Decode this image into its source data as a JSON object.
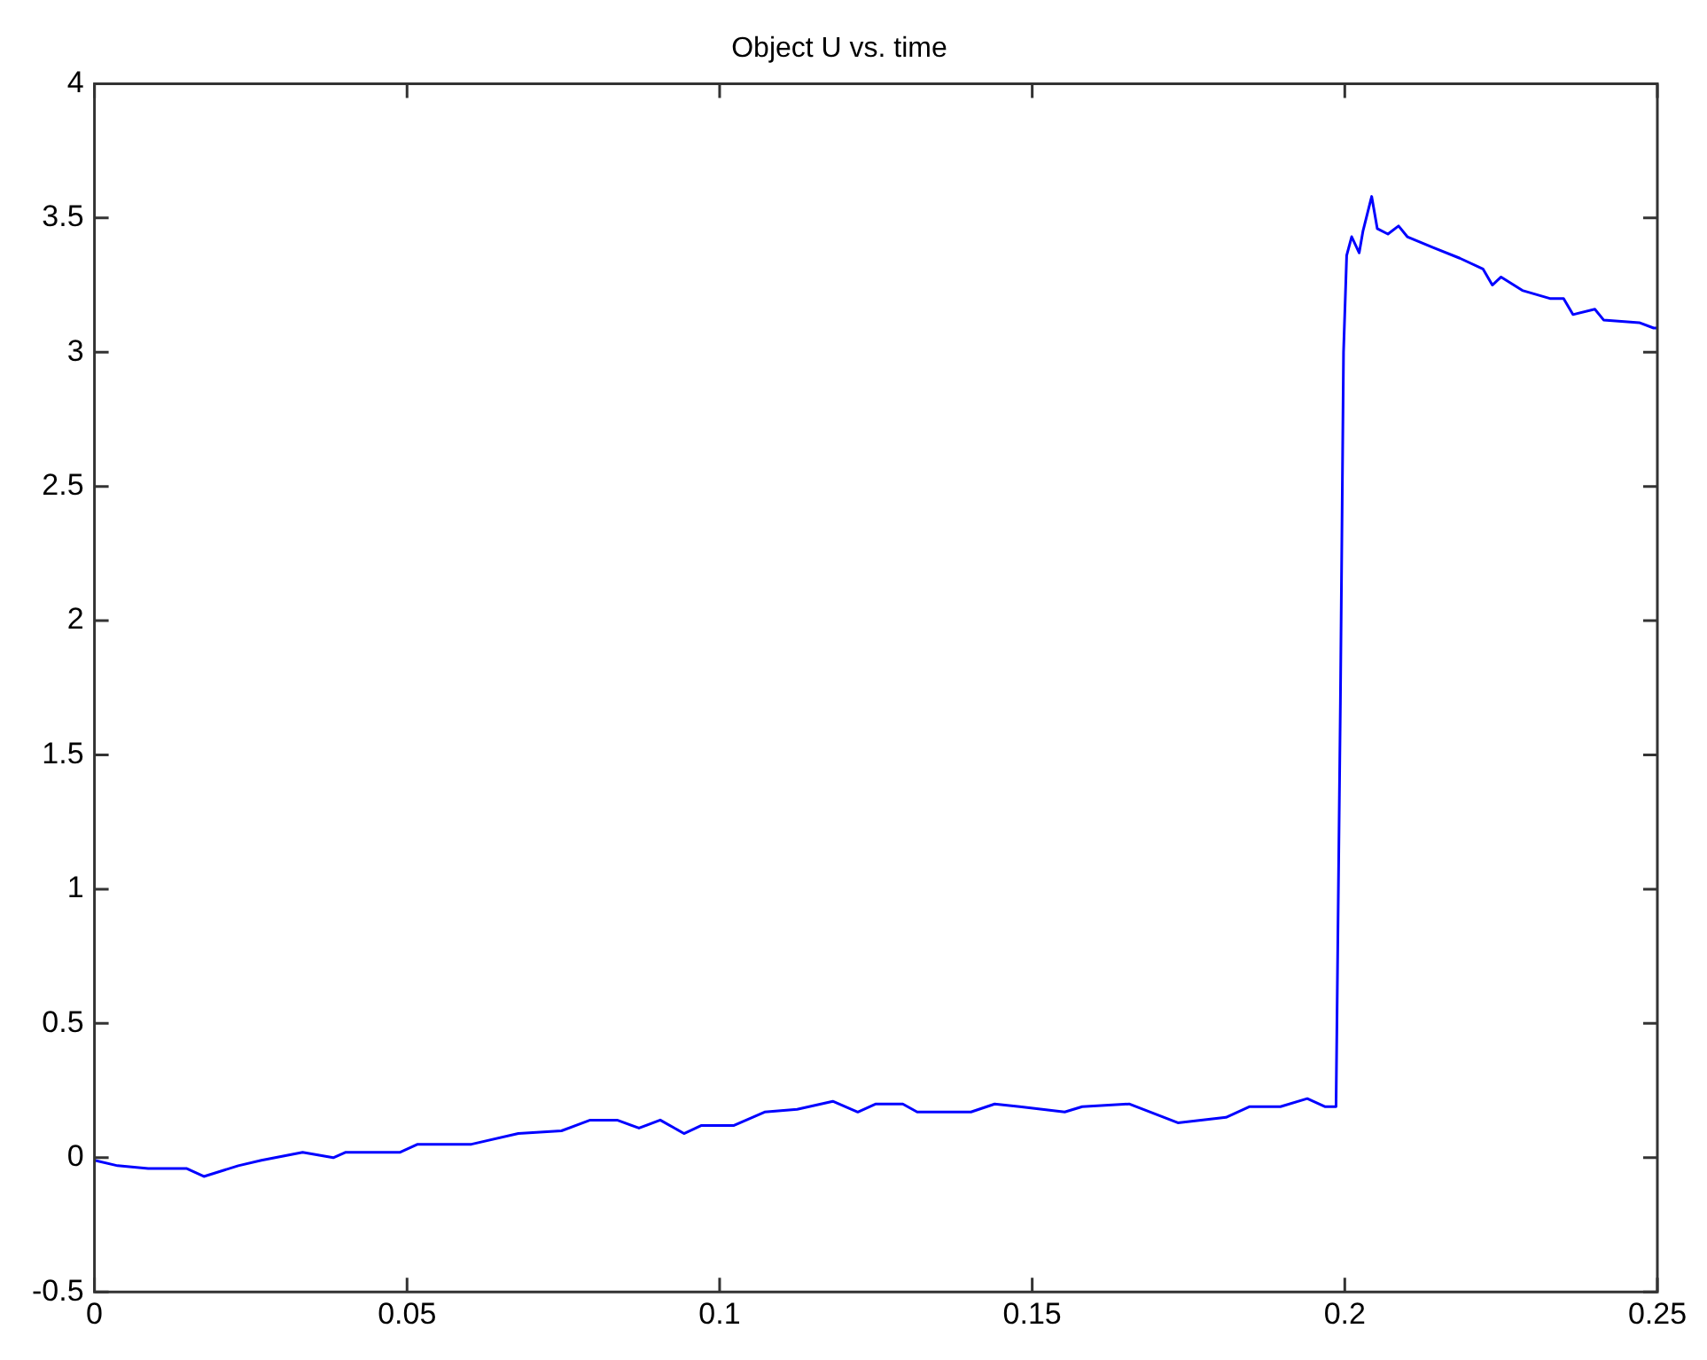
{
  "chart_data": {
    "type": "line",
    "title": "Object U vs. time",
    "marker": "none",
    "line_style": "solid",
    "grid": false,
    "legend": false,
    "xlim": [
      0,
      0.25
    ],
    "xticks": [
      0,
      0.05,
      0.1,
      0.15,
      0.2,
      0.25
    ],
    "ylim": [
      -0.5,
      4
    ],
    "yticks": [
      -0.5,
      0,
      0.5,
      1,
      1.5,
      2,
      2.5,
      3,
      3.5,
      4
    ],
    "series": [
      {
        "color": "#0000ff",
        "x": [
          0,
          0.0037,
          0.0086,
          0.0147,
          0.0175,
          0.023,
          0.0267,
          0.0333,
          0.0382,
          0.0402,
          0.0489,
          0.0517,
          0.0603,
          0.0678,
          0.0747,
          0.0793,
          0.0836,
          0.0871,
          0.0905,
          0.0943,
          0.0971,
          0.1023,
          0.1072,
          0.1124,
          0.1181,
          0.1221,
          0.125,
          0.1293,
          0.1316,
          0.1402,
          0.144,
          0.148,
          0.1552,
          0.158,
          0.1655,
          0.1733,
          0.181,
          0.1848,
          0.1897,
          0.194,
          0.1968,
          0.1986,
          0.1993,
          0.1998,
          0.2003,
          0.2011,
          0.2023,
          0.2029,
          0.2043,
          0.2052,
          0.2069,
          0.2086,
          0.21,
          0.2141,
          0.2184,
          0.2221,
          0.2236,
          0.225,
          0.2284,
          0.2328,
          0.235,
          0.2365,
          0.24,
          0.2414,
          0.2471,
          0.2494,
          0.25
        ],
        "values": [
          -0.01,
          -0.03,
          -0.04,
          -0.04,
          -0.07,
          -0.03,
          -0.01,
          0.02,
          0,
          0.02,
          0.02,
          0.05,
          0.05,
          0.09,
          0.1,
          0.14,
          0.14,
          0.11,
          0.14,
          0.09,
          0.12,
          0.12,
          0.17,
          0.18,
          0.21,
          0.17,
          0.2,
          0.2,
          0.17,
          0.17,
          0.2,
          0.19,
          0.17,
          0.19,
          0.2,
          0.13,
          0.15,
          0.19,
          0.19,
          0.22,
          0.19,
          0.19,
          1.7,
          3,
          3.36,
          3.43,
          3.37,
          3.45,
          3.58,
          3.46,
          3.44,
          3.47,
          3.43,
          3.39,
          3.35,
          3.31,
          3.25,
          3.28,
          3.23,
          3.2,
          3.2,
          3.14,
          3.16,
          3.12,
          3.11,
          3.09,
          3.09
        ]
      }
    ]
  }
}
